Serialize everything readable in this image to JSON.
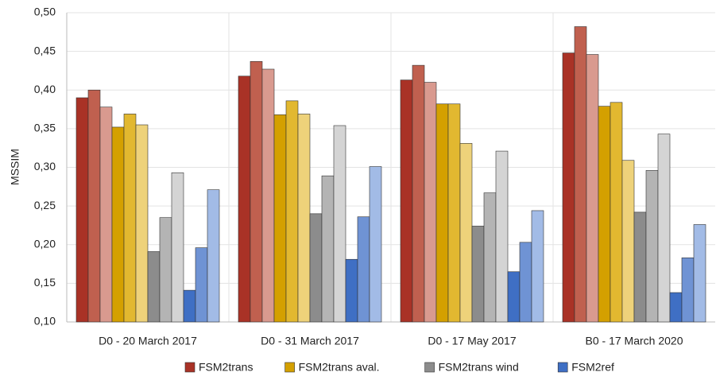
{
  "chart_data": {
    "type": "bar",
    "y_label": "MSSIM",
    "categories": [
      "D0 - 20 March 2017",
      "D0 - 31 March 2017",
      "D0 - 17 May 2017",
      "B0 - 17 March 2020"
    ],
    "series": [
      {
        "name": "FSM2trans",
        "color": "#a93226",
        "shades": [
          "#a93226",
          "#c0604f",
          "#d99a8f"
        ],
        "values": [
          [
            0.39,
            0.4,
            0.378
          ],
          [
            0.418,
            0.437,
            0.427
          ],
          [
            0.413,
            0.432,
            0.41
          ],
          [
            0.448,
            0.482,
            0.446
          ]
        ]
      },
      {
        "name": "FSM2trans aval.",
        "color": "#d4a000",
        "shades": [
          "#d4a000",
          "#e2b830",
          "#eed27a"
        ],
        "values": [
          [
            0.352,
            0.369,
            0.355
          ],
          [
            0.368,
            0.386,
            0.369
          ],
          [
            0.382,
            0.382,
            0.331
          ],
          [
            0.379,
            0.384,
            0.309
          ]
        ]
      },
      {
        "name": "FSM2trans wind",
        "color": "#8c8c8c",
        "shades": [
          "#8c8c8c",
          "#b4b4b4",
          "#d4d4d4"
        ],
        "values": [
          [
            0.191,
            0.235,
            0.293
          ],
          [
            0.24,
            0.289,
            0.354
          ],
          [
            0.224,
            0.267,
            0.321
          ],
          [
            0.242,
            0.296,
            0.343
          ]
        ]
      },
      {
        "name": "FSM2ref",
        "color": "#3f6fc4",
        "shades": [
          "#3f6fc4",
          "#6f93d4",
          "#a2bbe6"
        ],
        "values": [
          [
            0.141,
            0.196,
            0.271
          ],
          [
            0.181,
            0.236,
            0.301
          ],
          [
            0.165,
            0.203,
            0.244
          ],
          [
            0.138,
            0.183,
            0.226
          ]
        ]
      }
    ],
    "ylim": [
      0.1,
      0.5
    ],
    "yticks": [
      {
        "value": 0.1,
        "label": "0,10"
      },
      {
        "value": 0.15,
        "label": "0,15"
      },
      {
        "value": 0.2,
        "label": "0,20"
      },
      {
        "value": 0.25,
        "label": "0,25"
      },
      {
        "value": 0.3,
        "label": "0,30"
      },
      {
        "value": 0.35,
        "label": "0,35"
      },
      {
        "value": 0.4,
        "label": "0,40"
      },
      {
        "value": 0.45,
        "label": "0,45"
      },
      {
        "value": 0.5,
        "label": "0,50"
      }
    ],
    "grid": true,
    "legend": "bottom"
  }
}
